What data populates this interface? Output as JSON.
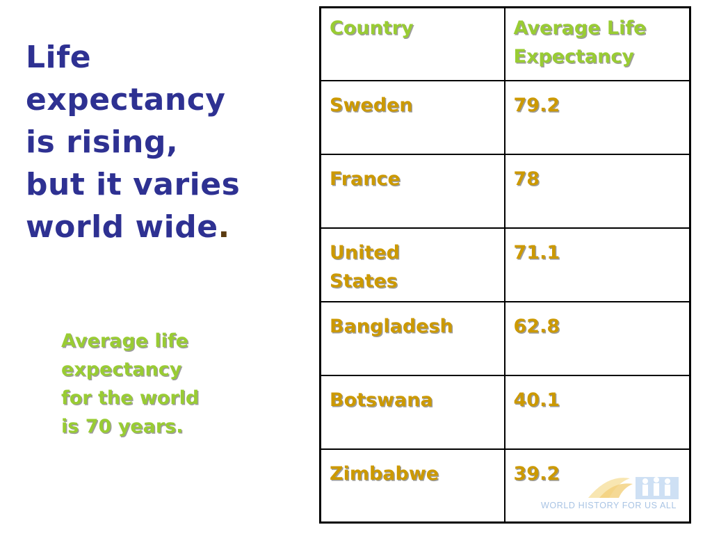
{
  "title": {
    "line1": "Life",
    "line2": "expectancy",
    "line3": "is rising,",
    "line4": "but it varies",
    "line5": "world wide",
    "period": "."
  },
  "note": {
    "line1": "Average life",
    "line2": "expectancy",
    "line3": "for the world",
    "line4": "is 70 years."
  },
  "table": {
    "headers": {
      "country": "Country",
      "life_line1": "Average Life",
      "life_line2": "Expectancy"
    },
    "rows": [
      {
        "country": "Sweden",
        "value": "79.2"
      },
      {
        "country": "France",
        "value": "78"
      },
      {
        "country_line1": "United",
        "country_line2": "States",
        "value": "71.1"
      },
      {
        "country": "Bangladesh",
        "value": "62.8"
      },
      {
        "country": "Botswana",
        "value": "40.1"
      },
      {
        "country": "Zimbabwe",
        "value": "39.2"
      }
    ]
  },
  "watermark": {
    "text": "WORLD HISTORY FOR US ALL"
  },
  "colors": {
    "title": "#2e3192",
    "note": "#99cc33",
    "header": "#99cc33",
    "cell": "#cc9900",
    "watermark_text": "#a9c4e4"
  }
}
